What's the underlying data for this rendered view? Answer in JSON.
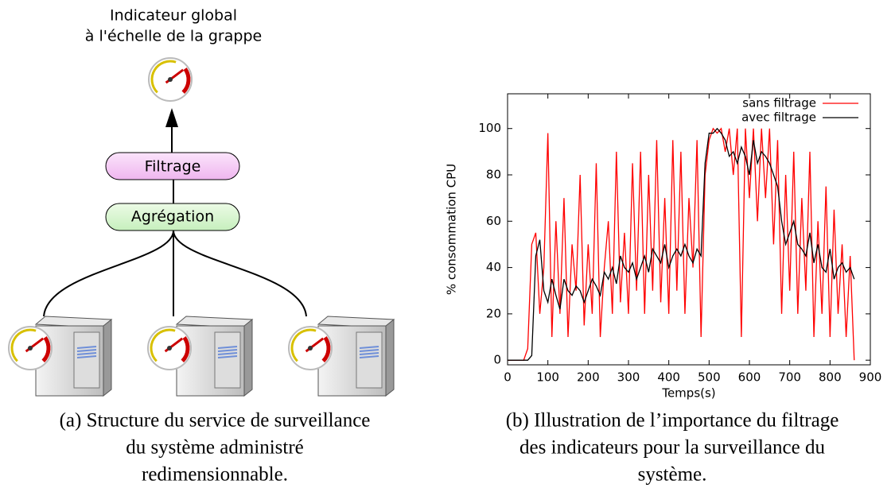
{
  "diagram": {
    "title": [
      "Indicateur global",
      "à l'échelle de la grappe"
    ],
    "filter": "Filtrage",
    "aggregation": "Agrégation"
  },
  "captions": {
    "a": [
      "(a) Structure du service de surveillance",
      "du système administré",
      "redimensionnable."
    ],
    "b": [
      "(b) Illustration de l’importance du filtrage",
      "des indicateurs pour la surveillance du",
      "système."
    ]
  },
  "chart_data": {
    "type": "line",
    "xlabel": "Temps(s)",
    "ylabel": "% consommation CPU",
    "legend": "top-right",
    "x": [
      0,
      10,
      20,
      30,
      40,
      50,
      60,
      70,
      80,
      90,
      100,
      110,
      120,
      130,
      140,
      150,
      160,
      170,
      180,
      190,
      200,
      210,
      220,
      230,
      240,
      250,
      260,
      270,
      280,
      290,
      300,
      310,
      320,
      330,
      340,
      350,
      360,
      370,
      380,
      390,
      400,
      410,
      420,
      430,
      440,
      450,
      460,
      470,
      480,
      490,
      500,
      510,
      520,
      530,
      540,
      550,
      560,
      570,
      580,
      590,
      600,
      610,
      620,
      630,
      640,
      650,
      660,
      670,
      680,
      690,
      700,
      710,
      720,
      730,
      740,
      750,
      760,
      770,
      780,
      790,
      800,
      810,
      820,
      830,
      840,
      850,
      860
    ],
    "series": [
      {
        "name": "sans filtrage",
        "color": "#ff0000",
        "values": [
          0,
          0,
          0,
          0,
          0,
          5,
          50,
          55,
          20,
          40,
          98,
          10,
          60,
          20,
          70,
          10,
          50,
          30,
          80,
          15,
          50,
          20,
          85,
          10,
          40,
          60,
          20,
          90,
          25,
          55,
          20,
          85,
          30,
          90,
          20,
          80,
          30,
          95,
          25,
          70,
          20,
          95,
          30,
          90,
          20,
          70,
          40,
          95,
          10,
          80,
          95,
          100,
          98,
          100,
          90,
          100,
          80,
          100,
          10,
          100,
          70,
          100,
          60,
          100,
          70,
          100,
          50,
          95,
          20,
          80,
          30,
          90,
          20,
          70,
          30,
          90,
          10,
          60,
          20,
          75,
          10,
          65,
          20,
          50,
          10,
          45,
          0
        ]
      },
      {
        "name": "avec filtrage",
        "color": "#000000",
        "values": [
          0,
          0,
          0,
          0,
          0,
          0,
          2,
          45,
          52,
          30,
          25,
          35,
          28,
          22,
          35,
          30,
          28,
          32,
          30,
          25,
          30,
          35,
          32,
          28,
          38,
          35,
          40,
          33,
          45,
          40,
          38,
          42,
          35,
          40,
          45,
          38,
          48,
          45,
          42,
          50,
          40,
          45,
          48,
          45,
          50,
          45,
          42,
          48,
          45,
          85,
          98,
          98,
          100,
          98,
          95,
          88,
          90,
          85,
          92,
          88,
          80,
          95,
          85,
          90,
          88,
          85,
          80,
          75,
          60,
          50,
          55,
          60,
          50,
          48,
          45,
          55,
          42,
          50,
          40,
          38,
          48,
          35,
          40,
          42,
          38,
          40,
          35
        ]
      }
    ],
    "xlim": [
      0,
      900
    ],
    "xticks": [
      0,
      100,
      200,
      300,
      400,
      500,
      600,
      700,
      800,
      900
    ],
    "ylim": [
      -2,
      115
    ],
    "yticks": [
      0,
      20,
      40,
      60,
      80,
      100
    ]
  }
}
